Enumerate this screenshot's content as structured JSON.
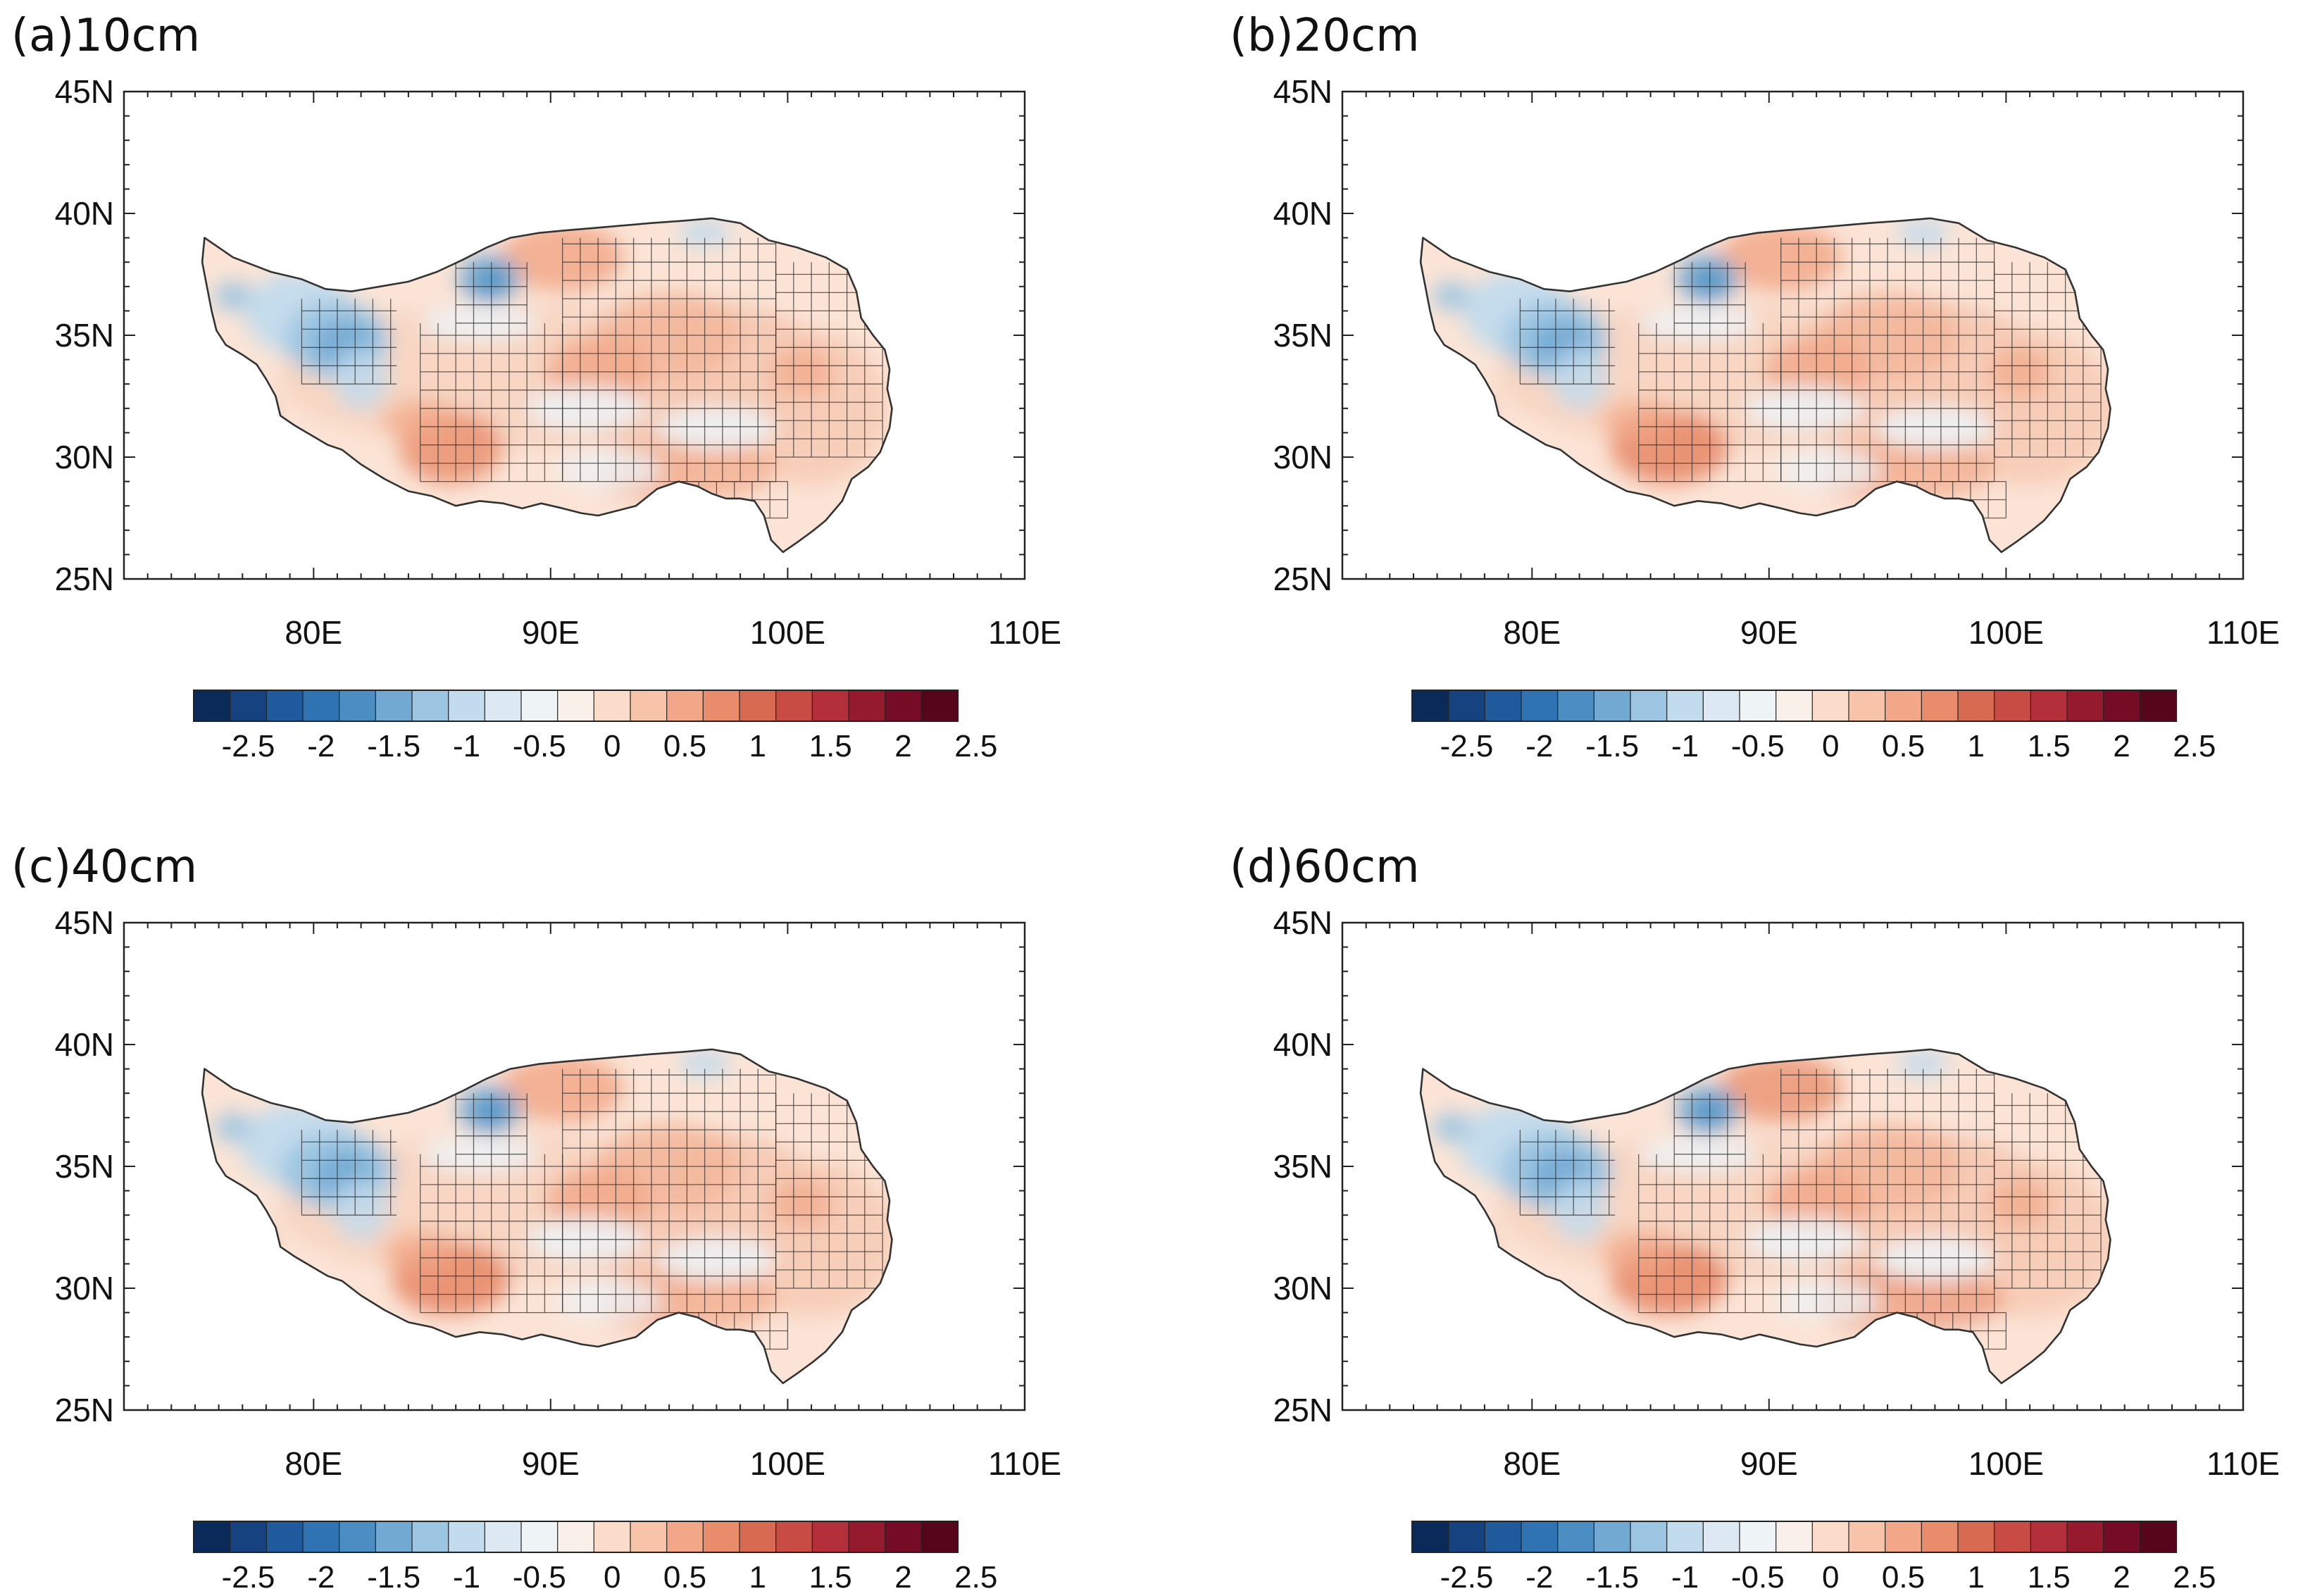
{
  "figure": {
    "panels": [
      {
        "title": "(a)10cm",
        "variant": 0
      },
      {
        "title": "(b)20cm",
        "variant": 1
      },
      {
        "title": "(c)40cm",
        "variant": 2
      },
      {
        "title": "(d)60cm",
        "variant": 3
      }
    ],
    "lat_ticks": [
      "45N",
      "40N",
      "35N",
      "30N",
      "25N"
    ],
    "lat_values": [
      45,
      40,
      35,
      30,
      25
    ],
    "lon_ticks": [
      "80E",
      "90E",
      "100E",
      "110E"
    ],
    "lon_values": [
      80,
      90,
      100,
      110
    ],
    "lon_range": [
      72,
      110
    ],
    "lat_range": [
      25,
      45
    ],
    "colorbar": {
      "labels": [
        "-2.5",
        "-2",
        "-1.5",
        "-1",
        "-0.5",
        "0",
        "0.5",
        "1",
        "1.5",
        "2",
        "2.5"
      ],
      "colors": [
        "#0a2a5a",
        "#16427f",
        "#1f5a9c",
        "#2f73b3",
        "#4a8ec4",
        "#71a9d3",
        "#9cc5e2",
        "#c2dbed",
        "#dde9f2",
        "#eef3f6",
        "#faf0ea",
        "#fbdccb",
        "#f7c3a9",
        "#f2a888",
        "#e88c6c",
        "#d86a52",
        "#c94c44",
        "#b3303a",
        "#951a2e",
        "#750b24",
        "#56051b"
      ]
    }
  }
}
